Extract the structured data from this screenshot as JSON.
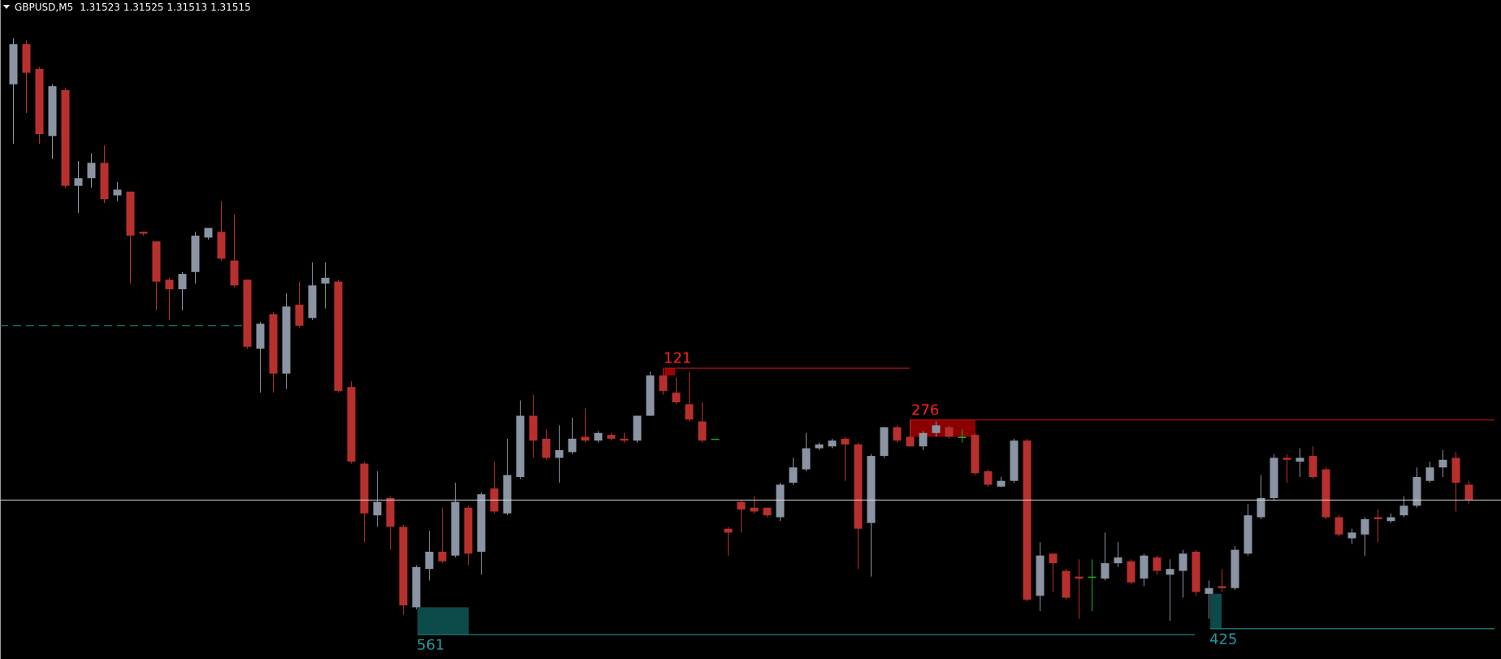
{
  "chart_data": {
    "type": "candlestick",
    "symbol": "GBPUSD,M5",
    "ylim": [
      1.31432,
      1.31776
    ],
    "colors": {
      "up": "#8a94a3",
      "down": "#b8302e",
      "doji": "#22aa22",
      "bid": "#d8d8d8",
      "level": "#1e8a8a"
    },
    "ohlc": [
      [
        1.31732,
        1.31756,
        1.31701,
        1.31753
      ],
      [
        1.31753,
        1.31755,
        1.31717,
        1.31738
      ],
      [
        1.3174,
        1.31741,
        1.31701,
        1.31706
      ],
      [
        1.31705,
        1.31732,
        1.31693,
        1.31731
      ],
      [
        1.31729,
        1.3173,
        1.31678,
        1.31679
      ],
      [
        1.31679,
        1.31692,
        1.31665,
        1.31683
      ],
      [
        1.31683,
        1.31696,
        1.31678,
        1.31691
      ],
      [
        1.31691,
        1.317,
        1.3167,
        1.31672
      ],
      [
        1.31674,
        1.31681,
        1.31671,
        1.31677
      ],
      [
        1.31676,
        1.31676,
        1.31628,
        1.31653
      ],
      [
        1.31655,
        1.31655,
        1.31653,
        1.31654
      ],
      [
        1.3165,
        1.3165,
        1.31614,
        1.31629
      ],
      [
        1.3163,
        1.31631,
        1.31609,
        1.31625
      ],
      [
        1.31625,
        1.31634,
        1.31614,
        1.31633
      ],
      [
        1.31634,
        1.31655,
        1.31628,
        1.31653
      ],
      [
        1.31652,
        1.31657,
        1.31651,
        1.31657
      ],
      [
        1.31655,
        1.31671,
        1.3164,
        1.31641
      ],
      [
        1.3164,
        1.31664,
        1.31626,
        1.31627
      ],
      [
        1.3163,
        1.3163,
        1.31594,
        1.31595
      ],
      [
        1.31594,
        1.31608,
        1.31571,
        1.31607
      ],
      [
        1.31612,
        1.31613,
        1.31571,
        1.31581
      ],
      [
        1.31581,
        1.31623,
        1.31573,
        1.31616
      ],
      [
        1.31617,
        1.31629,
        1.31605,
        1.31606
      ],
      [
        1.3161,
        1.31639,
        1.31609,
        1.31627
      ],
      [
        1.31628,
        1.31639,
        1.31615,
        1.31631
      ],
      [
        1.31629,
        1.3163,
        1.31571,
        1.31572
      ],
      [
        1.31574,
        1.31577,
        1.31534,
        1.31535
      ],
      [
        1.31534,
        1.31535,
        1.31493,
        1.31508
      ],
      [
        1.31507,
        1.3153,
        1.31501,
        1.31514
      ],
      [
        1.31516,
        1.31517,
        1.31489,
        1.31501
      ],
      [
        1.31501,
        1.31502,
        1.31455,
        1.3146
      ],
      [
        1.31459,
        1.31481,
        1.31458,
        1.3148
      ],
      [
        1.31479,
        1.31499,
        1.31473,
        1.31488
      ],
      [
        1.31488,
        1.31511,
        1.31482,
        1.31483
      ],
      [
        1.31486,
        1.31524,
        1.31485,
        1.31514
      ],
      [
        1.31511,
        1.31512,
        1.31481,
        1.31487
      ],
      [
        1.31488,
        1.31519,
        1.31476,
        1.31518
      ],
      [
        1.31521,
        1.31535,
        1.31508,
        1.31509
      ],
      [
        1.31508,
        1.31547,
        1.31507,
        1.31528
      ],
      [
        1.31527,
        1.31567,
        1.31526,
        1.31559
      ],
      [
        1.31559,
        1.3157,
        1.31537,
        1.31546
      ],
      [
        1.31547,
        1.31552,
        1.31536,
        1.31537
      ],
      [
        1.31537,
        1.31554,
        1.31524,
        1.31541
      ],
      [
        1.3154,
        1.31558,
        1.31539,
        1.31547
      ],
      [
        1.31548,
        1.31563,
        1.31545,
        1.31546
      ],
      [
        1.31546,
        1.31551,
        1.31545,
        1.3155
      ],
      [
        1.31549,
        1.3155,
        1.31546,
        1.31547
      ],
      [
        1.31547,
        1.3155,
        1.31545,
        1.31546
      ],
      [
        1.31546,
        1.31559,
        1.31545,
        1.31559
      ],
      [
        1.31559,
        1.31582,
        1.31559,
        1.3158
      ],
      [
        1.3158,
        1.31584,
        1.3157,
        1.31572
      ],
      [
        1.31571,
        1.31579,
        1.31565,
        1.31566
      ],
      [
        1.31565,
        1.31582,
        1.31556,
        1.31557
      ],
      [
        1.31556,
        1.31566,
        1.31545,
        1.31546
      ],
      [
        1.31547,
        1.31547,
        1.31547,
        1.31547
      ],
      [
        1.315,
        1.31501,
        1.31486,
        1.31498
      ],
      [
        1.31514,
        1.31515,
        1.31498,
        1.3151
      ],
      [
        1.31511,
        1.31517,
        1.31508,
        1.31509
      ],
      [
        1.31511,
        1.31511,
        1.31506,
        1.31507
      ],
      [
        1.31506,
        1.31524,
        1.31504,
        1.31523
      ],
      [
        1.31524,
        1.31537,
        1.31523,
        1.31532
      ],
      [
        1.31531,
        1.3155,
        1.3153,
        1.31542
      ],
      [
        1.31542,
        1.31545,
        1.31541,
        1.31544
      ],
      [
        1.31543,
        1.31547,
        1.31542,
        1.31546
      ],
      [
        1.31547,
        1.31548,
        1.31525,
        1.31544
      ],
      [
        1.31544,
        1.31545,
        1.31479,
        1.315
      ],
      [
        1.31503,
        1.31539,
        1.31475,
        1.31538
      ],
      [
        1.31538,
        1.31553,
        1.31537,
        1.31553
      ],
      [
        1.31553,
        1.31554,
        1.31545,
        1.31546
      ],
      [
        1.31548,
        1.31557,
        1.31543,
        1.31543
      ],
      [
        1.31543,
        1.31551,
        1.31541,
        1.3155
      ],
      [
        1.3155,
        1.31556,
        1.31548,
        1.31554
      ],
      [
        1.31553,
        1.31554,
        1.31547,
        1.31548
      ],
      [
        1.31548,
        1.31552,
        1.31545,
        1.31548
      ],
      [
        1.31549,
        1.3155,
        1.31528,
        1.31529
      ],
      [
        1.3153,
        1.31531,
        1.31522,
        1.31523
      ],
      [
        1.31522,
        1.31527,
        1.31522,
        1.31525
      ],
      [
        1.31525,
        1.31547,
        1.31524,
        1.31546
      ],
      [
        1.31546,
        1.31547,
        1.31462,
        1.31463
      ],
      [
        1.31465,
        1.31493,
        1.31457,
        1.31486
      ],
      [
        1.31487,
        1.31487,
        1.31467,
        1.31482
      ],
      [
        1.31478,
        1.31479,
        1.31463,
        1.31464
      ],
      [
        1.31475,
        1.31484,
        1.31453,
        1.31474
      ],
      [
        1.31475,
        1.31484,
        1.31457,
        1.31475
      ],
      [
        1.31474,
        1.31498,
        1.31473,
        1.31482
      ],
      [
        1.31482,
        1.31493,
        1.3148,
        1.31485
      ],
      [
        1.31483,
        1.31484,
        1.31471,
        1.31472
      ],
      [
        1.31474,
        1.31487,
        1.3147,
        1.31486
      ],
      [
        1.31485,
        1.31486,
        1.31476,
        1.31478
      ],
      [
        1.31476,
        1.31484,
        1.31452,
        1.31479
      ],
      [
        1.31478,
        1.31489,
        1.31464,
        1.31487
      ],
      [
        1.31488,
        1.31489,
        1.31465,
        1.31467
      ],
      [
        1.31466,
        1.31473,
        1.31453,
        1.31469
      ],
      [
        1.3147,
        1.31479,
        1.31467,
        1.31469
      ],
      [
        1.31469,
        1.31491,
        1.31468,
        1.31489
      ],
      [
        1.31487,
        1.31513,
        1.31486,
        1.31507
      ],
      [
        1.31506,
        1.31528,
        1.31505,
        1.31516
      ],
      [
        1.31516,
        1.31539,
        1.31515,
        1.31537
      ],
      [
        1.31537,
        1.31539,
        1.31524,
        1.31536
      ],
      [
        1.31535,
        1.31542,
        1.31527,
        1.31537
      ],
      [
        1.31538,
        1.31543,
        1.31526,
        1.31527
      ],
      [
        1.31531,
        1.31532,
        1.31505,
        1.31506
      ],
      [
        1.31506,
        1.31507,
        1.31496,
        1.31497
      ],
      [
        1.31495,
        1.315,
        1.31492,
        1.31498
      ],
      [
        1.31497,
        1.31506,
        1.31486,
        1.31505
      ],
      [
        1.31506,
        1.3151,
        1.31493,
        1.31505
      ],
      [
        1.31504,
        1.31508,
        1.31503,
        1.31506
      ],
      [
        1.31507,
        1.31517,
        1.31506,
        1.31512
      ],
      [
        1.31512,
        1.31532,
        1.31511,
        1.31527
      ],
      [
        1.31525,
        1.31535,
        1.31524,
        1.31532
      ],
      [
        1.31532,
        1.31541,
        1.31527,
        1.31536
      ],
      [
        1.31537,
        1.3154,
        1.31509,
        1.31524
      ],
      [
        1.31523,
        1.31525,
        1.31513,
        1.31515
      ]
    ],
    "dashed_level": 1.31606,
    "zones": [
      {
        "label": 121,
        "top": 1.31584,
        "bottom": 1.3158,
        "color": "#a00000",
        "line": "#b01010",
        "text": "#ff2020"
      },
      {
        "label": 276,
        "top": 1.31557,
        "bottom": 1.31548,
        "color": "#8b0000",
        "line": "#b01010",
        "text": "#ff2020"
      },
      {
        "label": 561,
        "top": 1.31459,
        "bottom": 1.31445,
        "color": "#0c4a4a",
        "line": "#1e7f80",
        "text": "#1f9aa0"
      },
      {
        "label": 425,
        "top": 1.31466,
        "bottom": 1.31448,
        "color": "#0c4a4a",
        "line": "#1e7f80",
        "text": "#1f9aa0"
      }
    ]
  }
}
